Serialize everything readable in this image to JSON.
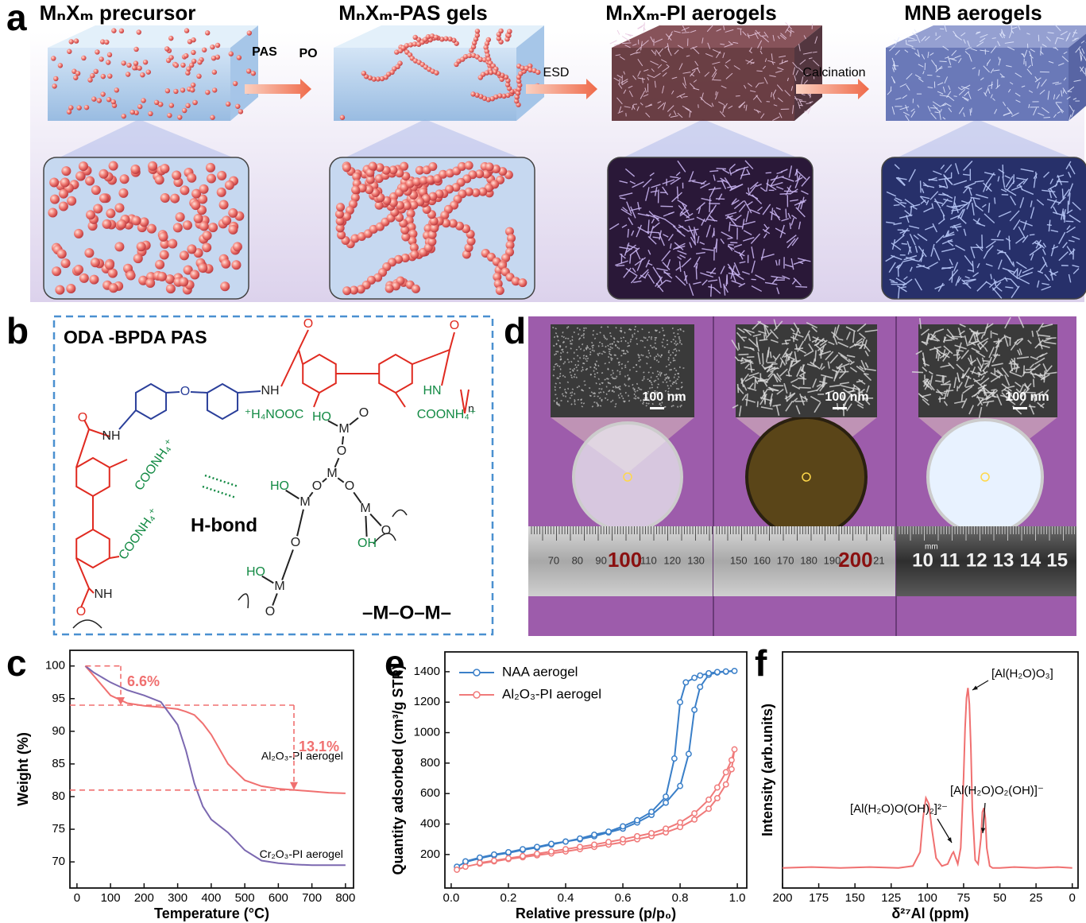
{
  "panel_a": {
    "label": "a",
    "stages": [
      "MₙXₘ precursor",
      "MₙXₘ-PAS gels",
      "MₙXₘ-PI aerogels",
      "MNB aerogels"
    ],
    "steps": [
      "PAS",
      "PO",
      "ESD",
      "Calcination"
    ]
  },
  "panel_b": {
    "label": "b",
    "title": "ODA -BPDA PAS",
    "hbond": "H-bond",
    "mom": "–M–O–M–",
    "atoms": [
      "O",
      "NH",
      "HN",
      "n",
      "⁺H₄NOOC",
      "COONH₄⁺",
      "NH",
      "COONH₄⁺",
      "COONH₄⁺",
      "NH",
      "O",
      "O",
      "O",
      "O",
      "HO",
      "M",
      "O",
      "O",
      "M",
      "O",
      "M",
      "OH",
      "O",
      "HO",
      "M",
      "O",
      "O",
      "HO",
      "M",
      "O"
    ]
  },
  "panel_d": {
    "label": "d",
    "scale_bars": [
      "100 nm",
      "100 nm",
      "100 nm"
    ],
    "ruler": [
      [
        "70",
        "80",
        "90",
        "100",
        "110",
        "120",
        "130"
      ],
      [
        "150",
        "160",
        "170",
        "180",
        "190",
        "200",
        "21"
      ],
      [
        "10",
        "11",
        "12",
        "13",
        "14",
        "15"
      ]
    ],
    "ruler_unit": "mm"
  },
  "chart_data": [
    {
      "type": "line",
      "label": "c",
      "xlabel": "Temperature (°C)",
      "ylabel": "Weight (%)",
      "legend": "inline",
      "x": [
        25,
        50,
        100,
        150,
        200,
        250,
        300,
        325,
        350,
        375,
        400,
        450,
        500,
        550,
        600,
        650,
        700,
        750,
        800
      ],
      "series": [
        {
          "name": "Al₂O₃-PI aerogel",
          "color": "#f07070",
          "values": [
            100,
            98.5,
            95.5,
            94.3,
            93.9,
            93.7,
            93.4,
            93.0,
            92.5,
            91.2,
            89.5,
            85.0,
            82.5,
            81.6,
            81.2,
            81.0,
            80.8,
            80.6,
            80.5
          ]
        },
        {
          "name": "Cr₂O₃-PI aerogel",
          "color": "#7b68b0",
          "values": [
            100,
            99,
            97.5,
            96.3,
            95.5,
            94.5,
            91,
            87,
            82,
            78.5,
            76.5,
            74.5,
            71.8,
            70.2,
            69.8,
            69.6,
            69.5,
            69.5,
            69.5
          ]
        }
      ],
      "annotations": [
        "6.6%",
        "13.1%"
      ],
      "reference_lines": [
        100,
        94,
        81
      ],
      "xlim": [
        -21,
        824
      ],
      "ylim": [
        66,
        102.4
      ],
      "xticks": [
        0,
        100,
        200,
        300,
        400,
        500,
        600,
        700,
        800
      ],
      "yticks": [
        70,
        75,
        80,
        85,
        90,
        95,
        100
      ]
    },
    {
      "type": "line",
      "label": "e",
      "xlabel": "Relative pressure (p/p₀)",
      "ylabel": "Quantity adsorbed (cm³/g STP)",
      "legend": "upper left",
      "markers": true,
      "series": [
        {
          "name": "NAA aerogel",
          "color": "#3a7fc8",
          "x": [
            0.02,
            0.05,
            0.1,
            0.15,
            0.2,
            0.25,
            0.3,
            0.35,
            0.4,
            0.45,
            0.5,
            0.55,
            0.6,
            0.65,
            0.7,
            0.75,
            0.8,
            0.83,
            0.85,
            0.87,
            0.9,
            0.93,
            0.96,
            0.99,
            0.96,
            0.93,
            0.9,
            0.87,
            0.85,
            0.82,
            0.8,
            0.78,
            0.75,
            0.7,
            0.65,
            0.6,
            0.55,
            0.5,
            0.45,
            0.4,
            0.35,
            0.3,
            0.25,
            0.2,
            0.15,
            0.1,
            0.05
          ],
          "values": [
            120,
            150,
            175,
            195,
            210,
            230,
            245,
            265,
            285,
            300,
            320,
            345,
            370,
            410,
            460,
            540,
            650,
            860,
            1150,
            1300,
            1380,
            1395,
            1400,
            1405,
            1402,
            1398,
            1390,
            1375,
            1360,
            1330,
            1200,
            830,
            580,
            480,
            425,
            385,
            350,
            330,
            305,
            285,
            270,
            250,
            235,
            215,
            200,
            180,
            155
          ]
        },
        {
          "name": "Al₂O₃-PI aerogel",
          "color": "#f07a7a",
          "x": [
            0.02,
            0.05,
            0.1,
            0.15,
            0.2,
            0.25,
            0.3,
            0.35,
            0.4,
            0.45,
            0.5,
            0.55,
            0.6,
            0.65,
            0.7,
            0.75,
            0.8,
            0.85,
            0.9,
            0.93,
            0.96,
            0.98,
            0.99,
            0.98,
            0.96,
            0.93,
            0.9,
            0.85,
            0.8,
            0.75,
            0.7,
            0.65,
            0.6,
            0.55,
            0.5,
            0.45,
            0.4,
            0.35,
            0.3,
            0.25,
            0.2,
            0.15,
            0.1
          ],
          "values": [
            100,
            120,
            140,
            155,
            170,
            182,
            195,
            207,
            220,
            235,
            250,
            265,
            280,
            300,
            320,
            345,
            380,
            430,
            500,
            570,
            660,
            760,
            890,
            820,
            740,
            640,
            560,
            470,
            410,
            370,
            340,
            320,
            300,
            282,
            265,
            250,
            235,
            220,
            205,
            190,
            175,
            160,
            145
          ]
        }
      ],
      "xlim": [
        -0.022,
        1.033
      ],
      "ylim": [
        -20,
        1530
      ],
      "xticks": [
        {
          "value": 0,
          "label": "0.0"
        },
        0.2,
        0.4,
        0.6,
        0.8,
        {
          "value": 1,
          "label": "1.0"
        }
      ],
      "yticks": [
        200,
        400,
        600,
        800,
        1000,
        1200,
        1400
      ]
    },
    {
      "type": "line",
      "label": "f",
      "xlabel": "δ²⁷Al (ppm)",
      "ylabel": "Intensity (arb.units)",
      "color": "#f07070",
      "x": [
        200,
        180,
        160,
        140,
        120,
        110,
        105,
        103,
        101,
        99,
        97,
        94,
        90,
        86,
        83,
        82,
        81,
        79,
        77,
        75,
        74,
        73,
        72,
        71,
        70,
        69,
        67,
        65,
        63,
        62,
        61,
        60,
        59,
        57,
        55,
        50,
        40,
        25,
        10,
        0
      ],
      "values": [
        10,
        10.5,
        10,
        10.5,
        10,
        11,
        18,
        35,
        45,
        42,
        30,
        15,
        11,
        12,
        17,
        18,
        16,
        12,
        20,
        55,
        80,
        95,
        100,
        92,
        70,
        40,
        14,
        12,
        25,
        38,
        40,
        35,
        20,
        11,
        10,
        10,
        10.5,
        10,
        10.5,
        10
      ],
      "annotations": [
        "[Al(H₂O)O₃]",
        "[Al(H₂O)O(OH)₂]²⁻",
        "[Al(H₂O)O₂(OH)]⁻"
      ],
      "xlim": [
        200,
        -4
      ],
      "ylim": [
        0,
        118
      ],
      "xticks": [
        200,
        175,
        150,
        125,
        100,
        75,
        50,
        25,
        0
      ]
    }
  ]
}
